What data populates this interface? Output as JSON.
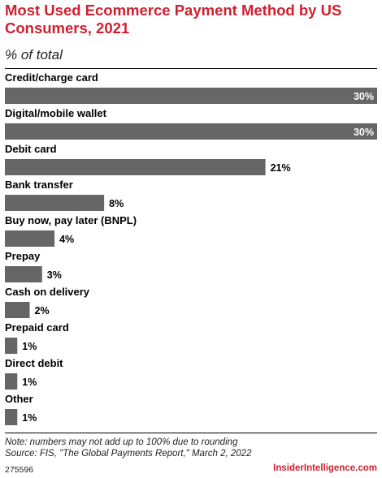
{
  "header": {
    "title": "Most Used Ecommerce Payment Method by US Consumers, 2021",
    "subtitle": "% of total"
  },
  "chart_data": {
    "type": "bar",
    "orientation": "horizontal",
    "categories": [
      "Credit/charge card",
      "Digital/mobile wallet",
      "Debit card",
      "Bank transfer",
      "Buy now, pay later (BNPL)",
      "Prepay",
      "Cash on delivery",
      "Prepaid card",
      "Direct debit",
      "Other"
    ],
    "values": [
      30,
      30,
      21,
      8,
      4,
      3,
      2,
      1,
      1,
      1
    ],
    "labels": [
      "30%",
      "30%",
      "21%",
      "8%",
      "4%",
      "3%",
      "2%",
      "1%",
      "1%",
      "1%"
    ],
    "unit": "%",
    "xlim": [
      0,
      30
    ],
    "bar_color": "#666666",
    "grid": false,
    "legend": "none"
  },
  "footer": {
    "note": "Note: numbers may not add up to 100% due to rounding",
    "source": "Source: FIS, \"The Global Payments Report,\" March 2, 2022",
    "chart_id": "275596",
    "brand": "InsiderIntelligence.com"
  },
  "colors": {
    "title": "#d01f2f",
    "bar": "#666666",
    "brand": "#d01f2f"
  }
}
